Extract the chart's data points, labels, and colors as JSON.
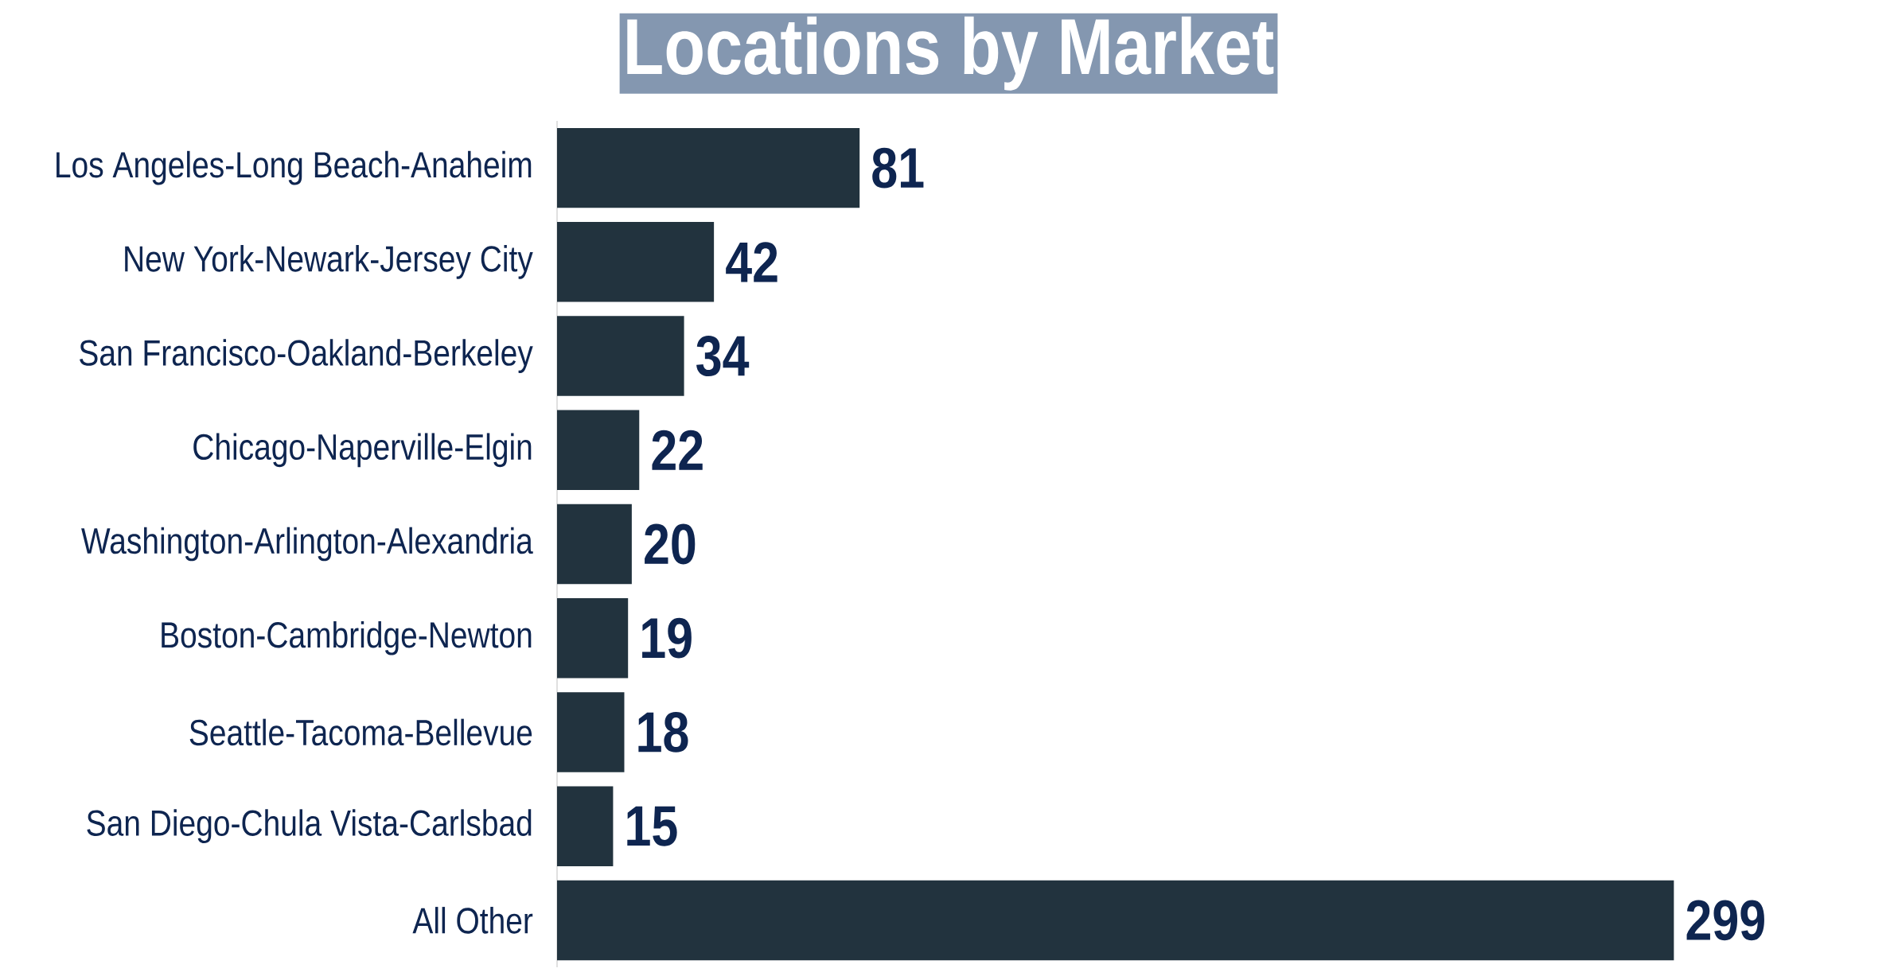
{
  "chart_data": {
    "type": "bar",
    "orientation": "horizontal",
    "title": "Locations by Market",
    "categories": [
      "Los Angeles-Long Beach-Anaheim",
      "New York-Newark-Jersey City",
      "San Francisco-Oakland-Berkeley",
      "Chicago-Naperville-Elgin",
      "Washington-Arlington-Alexandria",
      "Boston-Cambridge-Newton",
      "Seattle-Tacoma-Bellevue",
      "San Diego-Chula Vista-Carlsbad",
      "All Other"
    ],
    "values": [
      81,
      42,
      34,
      22,
      20,
      19,
      18,
      15,
      299
    ],
    "color": "#22333e",
    "data_labels": true
  }
}
